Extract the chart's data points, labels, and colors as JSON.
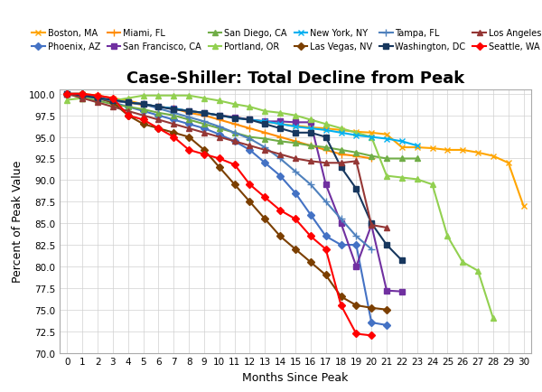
{
  "title": "Case-Shiller: Total Decline from Peak",
  "xlabel": "Months Since Peak",
  "ylabel": "Percent of Peak Value",
  "ylim": [
    70.0,
    100.5
  ],
  "xlim": [
    -0.5,
    30.5
  ],
  "yticks": [
    70.0,
    72.5,
    75.0,
    77.5,
    80.0,
    82.5,
    85.0,
    87.5,
    90.0,
    92.5,
    95.0,
    97.5,
    100.0
  ],
  "xticks": [
    0,
    1,
    2,
    3,
    4,
    5,
    6,
    7,
    8,
    9,
    10,
    11,
    12,
    13,
    14,
    15,
    16,
    17,
    18,
    19,
    20,
    21,
    22,
    23,
    24,
    25,
    26,
    27,
    28,
    29,
    30
  ],
  "series": [
    {
      "label": "Boston, MA",
      "color": "#FFA500",
      "marker": "x",
      "markersize": 4,
      "linewidth": 1.5,
      "x": [
        0,
        1,
        2,
        3,
        4,
        5,
        6,
        7,
        8,
        9,
        10,
        11,
        12,
        13,
        14,
        15,
        16,
        17,
        18,
        19,
        20,
        21,
        22,
        23,
        24,
        25,
        26,
        27,
        28,
        29,
        30
      ],
      "y": [
        100.0,
        100.0,
        99.8,
        99.5,
        99.2,
        98.8,
        98.5,
        98.3,
        98.0,
        97.8,
        97.5,
        97.3,
        97.0,
        96.8,
        96.5,
        96.3,
        96.1,
        96.0,
        95.8,
        95.6,
        95.5,
        95.3,
        93.8,
        93.8,
        93.7,
        93.5,
        93.5,
        93.2,
        92.8,
        92.0,
        87.0
      ]
    },
    {
      "label": "Phoenix, AZ",
      "color": "#4472C4",
      "marker": "D",
      "markersize": 4,
      "linewidth": 1.5,
      "x": [
        0,
        1,
        2,
        3,
        4,
        5,
        6,
        7,
        8,
        9,
        10,
        11,
        12,
        13,
        14,
        15,
        16,
        17,
        18,
        19,
        20,
        21
      ],
      "y": [
        100.0,
        100.0,
        99.5,
        99.0,
        98.5,
        98.0,
        97.5,
        97.0,
        96.5,
        96.0,
        95.3,
        94.5,
        93.5,
        92.0,
        90.5,
        88.5,
        86.0,
        83.5,
        82.5,
        82.5,
        73.5,
        73.2
      ]
    },
    {
      "label": "Miami, FL",
      "color": "#FF8C00",
      "marker": "+",
      "markersize": 6,
      "linewidth": 1.5,
      "x": [
        0,
        1,
        2,
        3,
        4,
        5,
        6,
        7,
        8,
        9,
        10,
        11,
        12,
        13,
        14,
        15,
        16,
        17,
        18,
        19,
        20
      ],
      "y": [
        100.0,
        99.8,
        99.5,
        99.2,
        99.0,
        98.7,
        98.5,
        98.3,
        97.8,
        97.5,
        97.0,
        96.5,
        96.0,
        95.5,
        95.0,
        94.5,
        94.0,
        93.5,
        93.0,
        92.8,
        92.5
      ]
    },
    {
      "label": "San Francisco, CA",
      "color": "#7030A0",
      "marker": "s",
      "markersize": 4,
      "linewidth": 1.5,
      "x": [
        0,
        1,
        2,
        3,
        4,
        5,
        6,
        7,
        8,
        9,
        10,
        11,
        12,
        13,
        14,
        15,
        16,
        17,
        18,
        19,
        20,
        21,
        22
      ],
      "y": [
        100.0,
        99.8,
        99.5,
        99.2,
        99.0,
        98.8,
        98.5,
        98.3,
        98.0,
        97.8,
        97.5,
        97.3,
        97.0,
        96.8,
        96.8,
        96.7,
        96.7,
        89.5,
        85.0,
        80.0,
        84.8,
        77.2,
        77.1
      ]
    },
    {
      "label": "San Diego, CA",
      "color": "#70AD47",
      "marker": "^",
      "markersize": 4,
      "linewidth": 1.5,
      "x": [
        0,
        1,
        2,
        3,
        4,
        5,
        6,
        7,
        8,
        9,
        10,
        11,
        12,
        13,
        14,
        15,
        16,
        17,
        18,
        19,
        20,
        21,
        22,
        23
      ],
      "y": [
        100.0,
        99.5,
        99.2,
        98.8,
        98.5,
        98.2,
        97.8,
        97.5,
        97.0,
        96.5,
        96.0,
        95.5,
        95.0,
        94.8,
        94.5,
        94.3,
        94.0,
        93.8,
        93.5,
        93.2,
        92.8,
        92.5,
        92.5,
        92.5
      ]
    },
    {
      "label": "Portland, OR",
      "color": "#92D050",
      "marker": "^",
      "markersize": 4,
      "linewidth": 1.5,
      "x": [
        0,
        1,
        2,
        3,
        4,
        5,
        6,
        7,
        8,
        9,
        10,
        11,
        12,
        13,
        14,
        15,
        16,
        17,
        18,
        19,
        20,
        21,
        22,
        23,
        24,
        25,
        26,
        27,
        28
      ],
      "y": [
        99.3,
        99.5,
        99.5,
        99.2,
        99.5,
        99.8,
        99.8,
        99.8,
        99.8,
        99.5,
        99.2,
        98.8,
        98.5,
        98.0,
        97.8,
        97.5,
        97.0,
        96.5,
        96.0,
        95.5,
        95.0,
        90.5,
        90.3,
        90.1,
        89.5,
        83.5,
        80.5,
        79.5,
        74.0
      ]
    },
    {
      "label": "New York, NY",
      "color": "#00B0F0",
      "marker": "x",
      "markersize": 4,
      "linewidth": 1.5,
      "x": [
        0,
        1,
        2,
        3,
        4,
        5,
        6,
        7,
        8,
        9,
        10,
        11,
        12,
        13,
        14,
        15,
        16,
        17,
        18,
        19,
        20,
        21,
        22,
        23
      ],
      "y": [
        100.0,
        99.8,
        99.5,
        99.3,
        99.0,
        98.8,
        98.5,
        98.3,
        98.0,
        97.8,
        97.5,
        97.2,
        97.0,
        96.8,
        96.5,
        96.2,
        96.0,
        95.8,
        95.5,
        95.2,
        95.0,
        94.8,
        94.5,
        94.0
      ]
    },
    {
      "label": "Las Vegas, NV",
      "color": "#7B3F00",
      "marker": "D",
      "markersize": 4,
      "linewidth": 1.5,
      "x": [
        0,
        1,
        2,
        3,
        4,
        5,
        6,
        7,
        8,
        9,
        10,
        11,
        12,
        13,
        14,
        15,
        16,
        17,
        18,
        19,
        20,
        21
      ],
      "y": [
        100.0,
        100.0,
        99.5,
        99.0,
        97.5,
        96.5,
        96.0,
        95.5,
        95.0,
        93.5,
        91.5,
        89.5,
        87.5,
        85.5,
        83.5,
        82.0,
        80.5,
        79.0,
        76.5,
        75.5,
        75.2,
        75.0
      ]
    },
    {
      "label": "Tampa, FL",
      "color": "#4F81BD",
      "marker": "+",
      "markersize": 6,
      "linewidth": 1.5,
      "x": [
        0,
        1,
        2,
        3,
        4,
        5,
        6,
        7,
        8,
        9,
        10,
        11,
        12,
        13,
        14,
        15,
        16,
        17,
        18,
        19,
        20
      ],
      "y": [
        100.0,
        99.8,
        99.5,
        99.2,
        99.0,
        98.8,
        98.3,
        97.8,
        97.3,
        96.8,
        96.2,
        95.5,
        94.8,
        93.8,
        92.5,
        91.0,
        89.5,
        87.5,
        85.5,
        83.5,
        82.0
      ]
    },
    {
      "label": "Washington, DC",
      "color": "#17375E",
      "marker": "s",
      "markersize": 4,
      "linewidth": 1.5,
      "x": [
        0,
        1,
        2,
        3,
        4,
        5,
        6,
        7,
        8,
        9,
        10,
        11,
        12,
        13,
        14,
        15,
        16,
        17,
        18,
        19,
        20,
        21,
        22
      ],
      "y": [
        100.0,
        99.8,
        99.5,
        99.3,
        99.0,
        98.8,
        98.5,
        98.2,
        98.0,
        97.8,
        97.5,
        97.2,
        97.0,
        96.5,
        96.0,
        95.5,
        95.5,
        95.0,
        91.5,
        89.0,
        85.0,
        82.5,
        80.7
      ]
    },
    {
      "label": "Los Angeles, CA",
      "color": "#953735",
      "marker": "^",
      "markersize": 4,
      "linewidth": 1.5,
      "x": [
        0,
        1,
        2,
        3,
        4,
        5,
        6,
        7,
        8,
        9,
        10,
        11,
        12,
        13,
        14,
        15,
        16,
        17,
        18,
        19,
        20,
        21
      ],
      "y": [
        100.0,
        99.5,
        99.0,
        98.5,
        98.0,
        97.5,
        97.0,
        96.5,
        96.0,
        95.5,
        95.0,
        94.5,
        94.0,
        93.5,
        93.0,
        92.5,
        92.2,
        92.0,
        92.0,
        92.2,
        84.8,
        84.5
      ]
    },
    {
      "label": "Seattle, WA",
      "color": "#FF0000",
      "marker": "D",
      "markersize": 4,
      "linewidth": 1.5,
      "x": [
        0,
        1,
        2,
        3,
        4,
        5,
        6,
        7,
        8,
        9,
        10,
        11,
        12,
        13,
        14,
        15,
        16,
        17,
        18,
        19,
        20
      ],
      "y": [
        100.0,
        100.0,
        99.8,
        99.5,
        97.5,
        97.0,
        96.0,
        95.0,
        93.5,
        93.0,
        92.5,
        91.8,
        89.5,
        88.0,
        86.5,
        85.5,
        83.5,
        82.0,
        75.5,
        72.2,
        72.0
      ]
    }
  ],
  "legend_order": [
    "Boston, MA",
    "Phoenix, AZ",
    "Miami, FL",
    "San Francisco, CA",
    "San Diego, CA",
    "Portland, OR",
    "New York, NY",
    "Las Vegas, NV",
    "Tampa, FL",
    "Washington, DC",
    "Los Angeles, CA",
    "Seattle, WA"
  ],
  "background_color": "#FFFFFF",
  "grid_color": "#D0D0D0",
  "title_fontsize": 13,
  "axis_fontsize": 9,
  "tick_fontsize": 7.5,
  "legend_fontsize": 7
}
